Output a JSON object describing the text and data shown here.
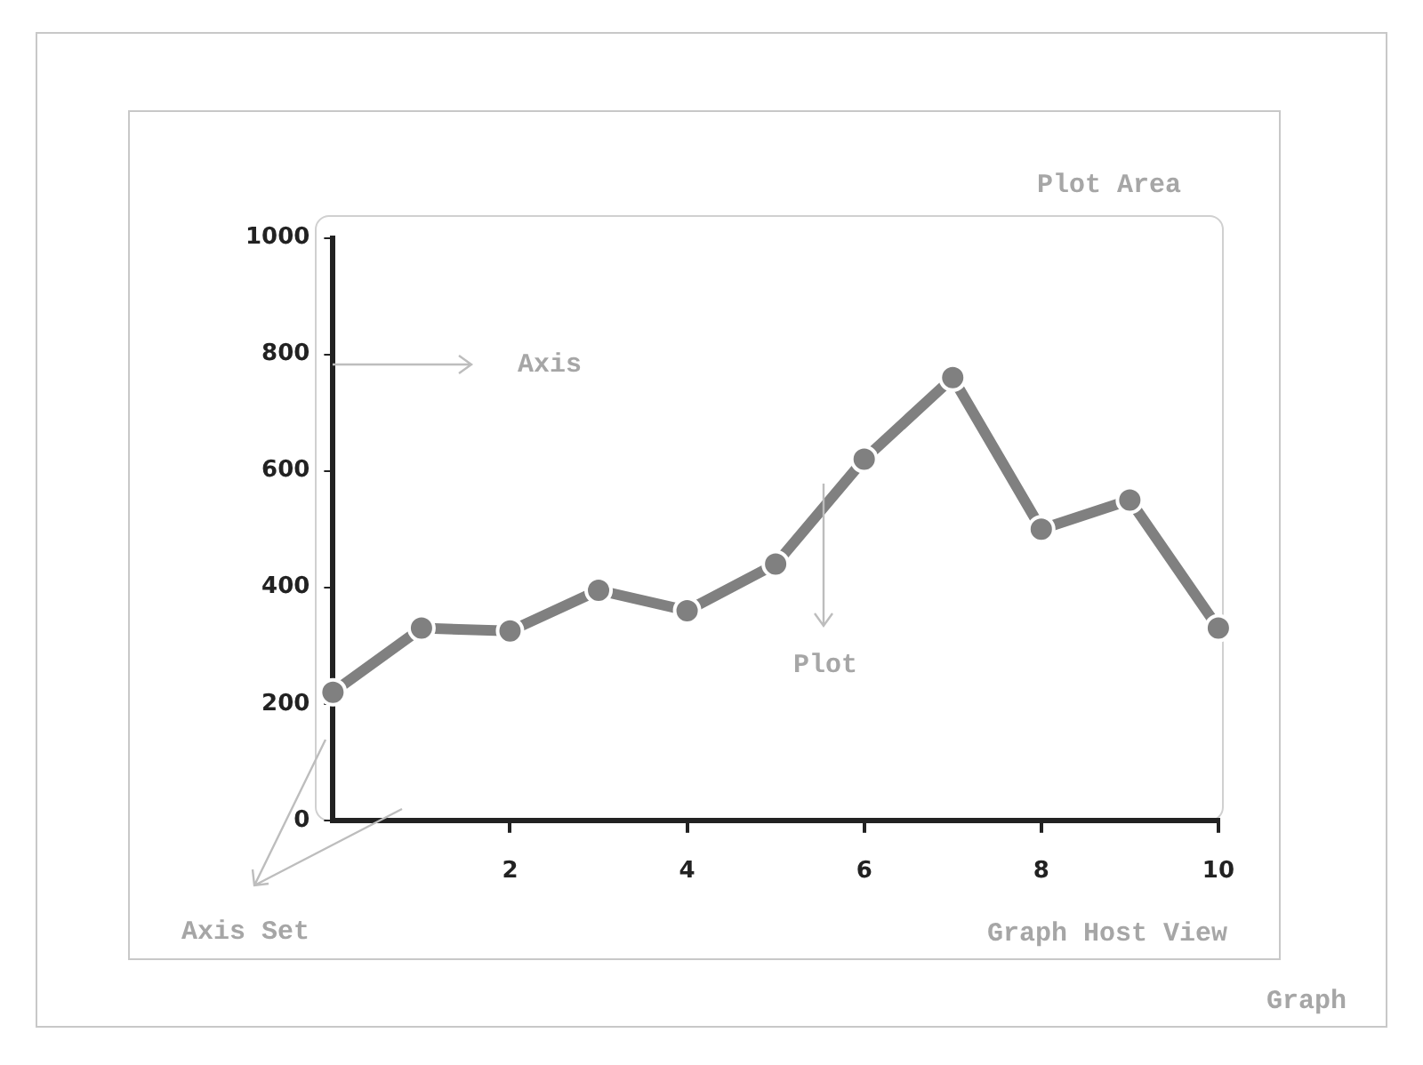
{
  "chart_data": {
    "type": "line",
    "x": [
      0,
      1,
      2,
      3,
      4,
      5,
      6,
      7,
      8,
      9,
      10
    ],
    "series": [
      {
        "color": "#808080",
        "values": [
          220,
          330,
          325,
          395,
          360,
          440,
          620,
          760,
          500,
          550,
          330
        ]
      }
    ],
    "xlim": [
      0,
      10
    ],
    "xticks": [
      2,
      4,
      6,
      8,
      10
    ],
    "ylim": [
      0,
      1000
    ],
    "yticks": [
      0,
      200,
      400,
      600,
      800,
      1000
    ],
    "grid": false,
    "legend": false,
    "marker": "circle",
    "line_style": "solid",
    "annotations": [
      "Plot Area",
      "Axis",
      "Plot",
      "Axis Set",
      "Graph Host View",
      "Graph"
    ]
  }
}
